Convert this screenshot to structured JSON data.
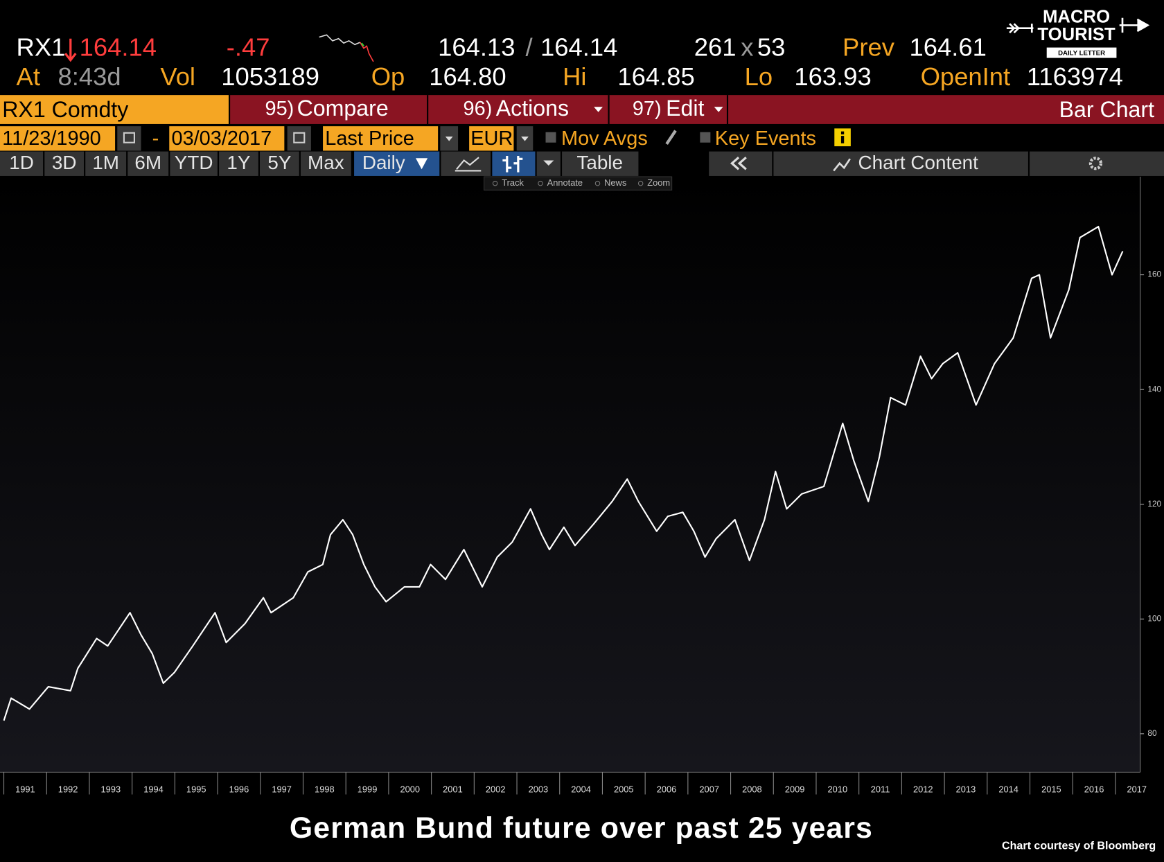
{
  "header": {
    "ticker": "RX1",
    "last": "164.14",
    "change": "-.47",
    "bid": "164.13",
    "bid_ask_sep": "/",
    "ask": "164.14",
    "bid_size": "261",
    "size_sep": "x",
    "ask_size": "53",
    "prev_label": "Prev",
    "prev": "164.61",
    "time_label": "At",
    "time": "8:43d",
    "vol_label": "Vol",
    "vol": "1053189",
    "open_label": "Op",
    "open": "164.80",
    "high_label": "Hi",
    "high": "164.85",
    "low_label": "Lo",
    "low": "163.93",
    "oi_label": "OpenInt",
    "oi": "1163974"
  },
  "logo": {
    "line1": "MACRO",
    "line2": "TOURIST",
    "line3": "DAILY LETTER"
  },
  "toolbar": {
    "security": "RX1 Comdty",
    "compare_num": "95)",
    "compare": "Compare",
    "actions_num": "96)",
    "actions": "Actions",
    "edit_num": "97)",
    "edit": "Edit",
    "chart_type": "Bar Chart"
  },
  "settings": {
    "start": "11/23/1990",
    "dash": "-",
    "end": "03/03/2017",
    "field": "Last Price",
    "currency": "EUR",
    "mov_avgs": "Mov Avgs",
    "key_events": "Key Events"
  },
  "periods": [
    "1D",
    "3D",
    "1M",
    "6M",
    "YTD",
    "1Y",
    "5Y",
    "Max"
  ],
  "frequency": "Daily",
  "table": "Table",
  "chart_content": "Chart Content",
  "tools": [
    "Track",
    "Annotate",
    "News",
    "Zoom"
  ],
  "chart_data": {
    "type": "line",
    "color": "#ffffff",
    "x": [
      1991.0,
      1991.17,
      1991.6,
      1992.04,
      1992.56,
      1992.73,
      1993.17,
      1993.43,
      1993.95,
      1994.21,
      1994.47,
      1994.73,
      1994.99,
      1995.42,
      1995.94,
      1996.2,
      1996.64,
      1997.07,
      1997.25,
      1997.77,
      1998.11,
      1998.46,
      1998.64,
      1998.93,
      1999.16,
      1999.42,
      1999.68,
      1999.94,
      2000.37,
      2000.72,
      2000.98,
      2001.33,
      2001.76,
      2002.19,
      2002.54,
      2002.89,
      2003.32,
      2003.58,
      2003.76,
      2004.1,
      2004.36,
      2004.8,
      2005.23,
      2005.58,
      2005.84,
      2006.27,
      2006.53,
      2006.88,
      2007.14,
      2007.4,
      2007.66,
      2008.1,
      2008.44,
      2008.79,
      2009.05,
      2009.31,
      2009.66,
      2010.18,
      2010.62,
      2010.88,
      2011.22,
      2011.48,
      2011.74,
      2012.09,
      2012.44,
      2012.7,
      2012.96,
      2013.31,
      2013.74,
      2014.17,
      2014.61,
      2015.04,
      2015.22,
      2015.48,
      2015.91,
      2016.17,
      2016.6,
      2016.92,
      2017.17
    ],
    "values": [
      82.3,
      86.2,
      84.3,
      88.2,
      87.5,
      91.4,
      96.6,
      95.3,
      101.1,
      97.2,
      94.0,
      88.8,
      90.7,
      95.3,
      101.1,
      95.9,
      99.2,
      103.7,
      101.1,
      103.7,
      108.2,
      109.5,
      114.7,
      117.3,
      114.7,
      109.5,
      105.6,
      103.0,
      105.6,
      105.6,
      109.5,
      106.9,
      112.1,
      105.6,
      110.8,
      113.4,
      119.2,
      114.7,
      112.1,
      116.0,
      112.8,
      116.6,
      120.5,
      124.4,
      120.5,
      115.3,
      117.9,
      118.6,
      115.3,
      110.8,
      114.0,
      117.3,
      110.2,
      117.3,
      125.7,
      119.2,
      121.8,
      123.1,
      134.1,
      127.6,
      120.5,
      128.3,
      138.6,
      137.3,
      145.8,
      141.9,
      144.5,
      146.4,
      137.3,
      144.5,
      149.0,
      159.4,
      160.0,
      149.0,
      157.4,
      166.5,
      168.4,
      160.0,
      164.1
    ],
    "xlim": [
      1990.91,
      2017.58
    ],
    "ylim": [
      73.3,
      177.1
    ],
    "xticks": [
      1991,
      1992,
      1993,
      1994,
      1995,
      1996,
      1997,
      1998,
      1999,
      2000,
      2001,
      2002,
      2003,
      2004,
      2005,
      2006,
      2007,
      2008,
      2009,
      2010,
      2011,
      2012,
      2013,
      2014,
      2015,
      2016,
      2017
    ],
    "yticks": [
      80,
      100,
      120,
      140,
      160
    ]
  },
  "caption": "German Bund future over past 25 years",
  "credit": "Chart courtesy of Bloomberg"
}
